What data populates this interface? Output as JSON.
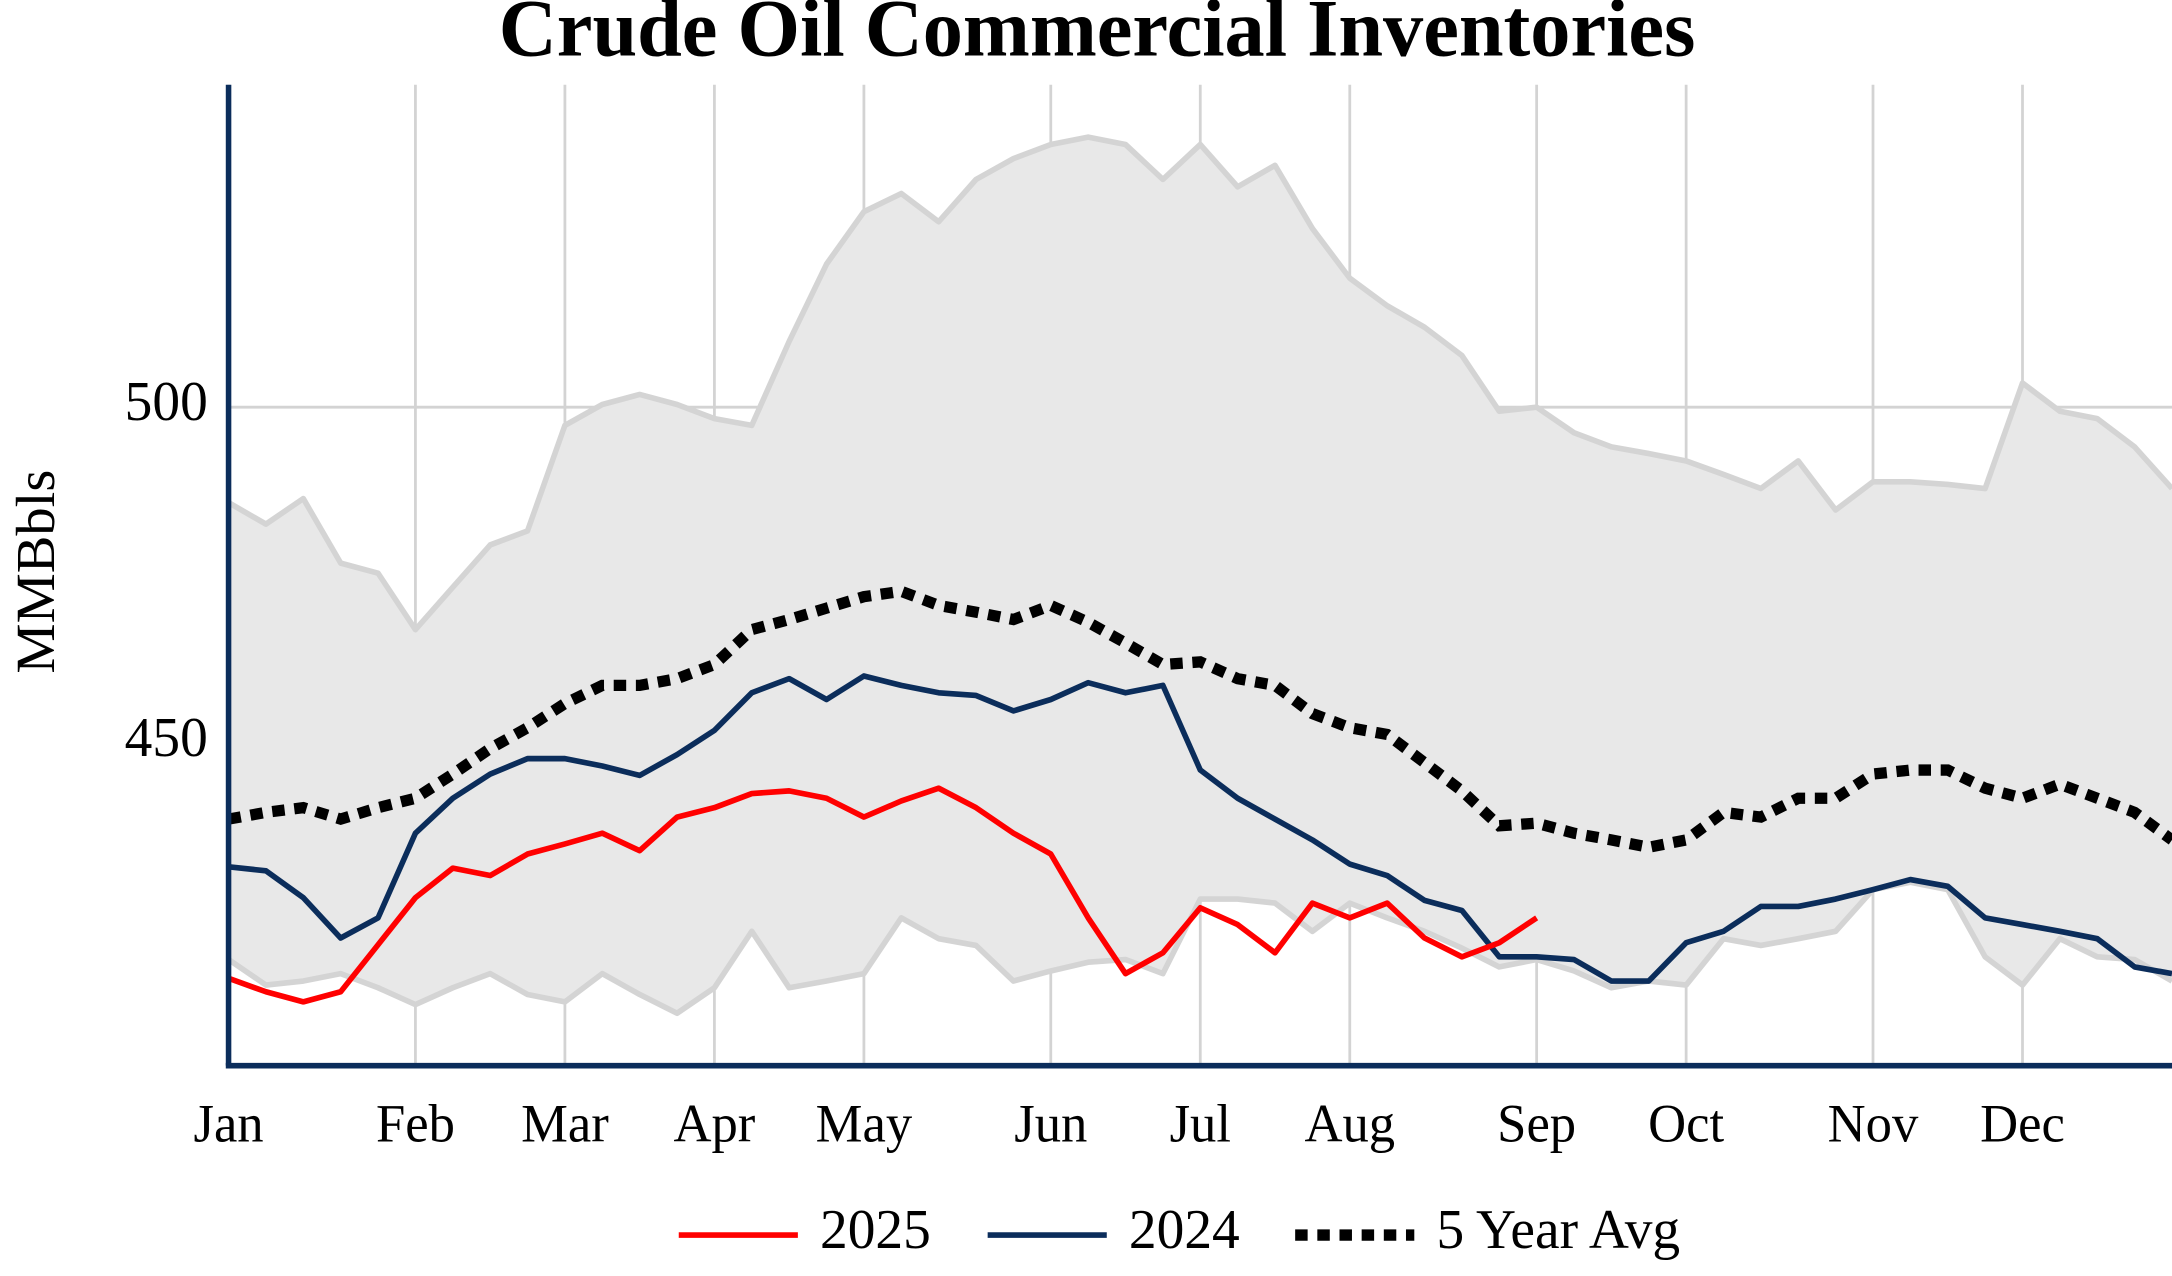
{
  "chart_data": {
    "type": "line",
    "title": "Crude Oil Commercial Inventories",
    "y_label": "MMBbls",
    "categories": [
      "Jan",
      null,
      null,
      null,
      null,
      "Feb",
      null,
      null,
      null,
      "Mar",
      null,
      null,
      null,
      "Apr",
      null,
      null,
      null,
      "May",
      null,
      null,
      null,
      null,
      "Jun",
      null,
      null,
      null,
      "Jul",
      null,
      null,
      null,
      "Aug",
      null,
      null,
      null,
      null,
      "Sep",
      null,
      null,
      null,
      "Oct",
      null,
      null,
      null,
      null,
      "Nov",
      null,
      null,
      null,
      "Dec",
      null,
      null,
      null,
      null
    ],
    "ylim": [
      402,
      548
    ],
    "yticks": [
      450,
      500
    ],
    "grid": true,
    "band": {
      "color": "#e8e8e8",
      "line_color": "#d4d4d4",
      "upper": [
        485.8,
        482.6,
        486.4,
        476.8,
        475.3,
        466.9,
        473.2,
        479.5,
        481.6,
        497.3,
        500.4,
        501.9,
        500.4,
        498.3,
        497.3,
        509.8,
        521.3,
        529.1,
        531.8,
        527.6,
        533.9,
        537,
        539.1,
        540.2,
        539.1,
        533.9,
        539.1,
        532.8,
        536,
        526.6,
        519.2,
        515.1,
        511.9,
        507.7,
        499.4,
        500,
        496.2,
        494.1,
        493.1,
        492,
        490,
        487.9,
        492,
        484.7,
        488.9,
        488.9,
        488.5,
        487.9,
        503.6,
        499.4,
        498.3,
        494.1,
        487.9
      ],
      "lower": [
        417.8,
        414,
        414.6,
        415.7,
        413.6,
        411.1,
        413.6,
        415.7,
        412.6,
        411.5,
        415.7,
        412.6,
        409.8,
        413.6,
        422,
        413.6,
        414.6,
        415.7,
        424,
        420.9,
        419.9,
        414.6,
        416.1,
        417.4,
        417.8,
        415.7,
        426.8,
        426.8,
        426.2,
        422,
        426.2,
        424,
        422,
        419.5,
        416.7,
        417.8,
        416.1,
        413.6,
        414.6,
        414,
        420.9,
        419.9,
        420.9,
        422,
        428.2,
        429.3,
        428.2,
        418.2,
        414,
        420.9,
        418.2,
        417.8,
        414.6
      ]
    },
    "series": [
      {
        "name": "2025",
        "color": "#ff0000",
        "style": "solid",
        "values": [
          415,
          413,
          411.5,
          413,
          420,
          427,
          431.4,
          430.3,
          433.5,
          435,
          436.6,
          434,
          439,
          440.4,
          442.5,
          442.9,
          441.8,
          439,
          441.4,
          443.3,
          440.4,
          436.6,
          433.5,
          424,
          415.7,
          418.8,
          425.5,
          423,
          418.8,
          426.2,
          424,
          426.2,
          421,
          418.2,
          420.3,
          424,
          null,
          null,
          null,
          null,
          null,
          null,
          null,
          null,
          null,
          null,
          null,
          null,
          null,
          null,
          null,
          null,
          null
        ]
      },
      {
        "name": "2024",
        "color": "#0b2d5b",
        "style": "solid",
        "values": [
          431.6,
          431,
          427,
          421,
          424,
          436.6,
          441.8,
          445.4,
          447.7,
          447.7,
          446.6,
          445.2,
          448.3,
          451.9,
          457.5,
          459.6,
          456.5,
          460,
          458.6,
          457.5,
          457.1,
          454.8,
          456.5,
          459,
          457.5,
          458.6,
          446,
          441.8,
          438.7,
          435.6,
          432,
          430.3,
          426.6,
          425.1,
          418.2,
          418.2,
          417.8,
          414.6,
          414.6,
          420.3,
          422,
          425.7,
          425.7,
          426.8,
          428.2,
          429.7,
          428.7,
          424,
          423,
          422,
          420.9,
          416.7,
          415.7
        ]
      },
      {
        "name": "5 Year Avg",
        "color": "#000000",
        "style": "dotted",
        "values": [
          438.7,
          439.7,
          440.4,
          438.7,
          440.4,
          441.8,
          445.4,
          449.2,
          452.3,
          455.9,
          458.6,
          458.6,
          459.6,
          461.7,
          466.9,
          468.4,
          470.1,
          471.8,
          472.6,
          470.5,
          469.5,
          468.4,
          470.5,
          468,
          464.9,
          461.7,
          462.1,
          459.6,
          458.6,
          454.4,
          452.3,
          451.3,
          447.1,
          442.9,
          437.7,
          438.1,
          436.6,
          435.6,
          434.5,
          435.6,
          439.7,
          439,
          441.8,
          441.8,
          445.4,
          446,
          446,
          443.3,
          441.8,
          443.9,
          441.8,
          439.7,
          435.6
        ]
      }
    ],
    "axis_color": "#0b2d5b",
    "grid_color": "#d3d3d3"
  }
}
